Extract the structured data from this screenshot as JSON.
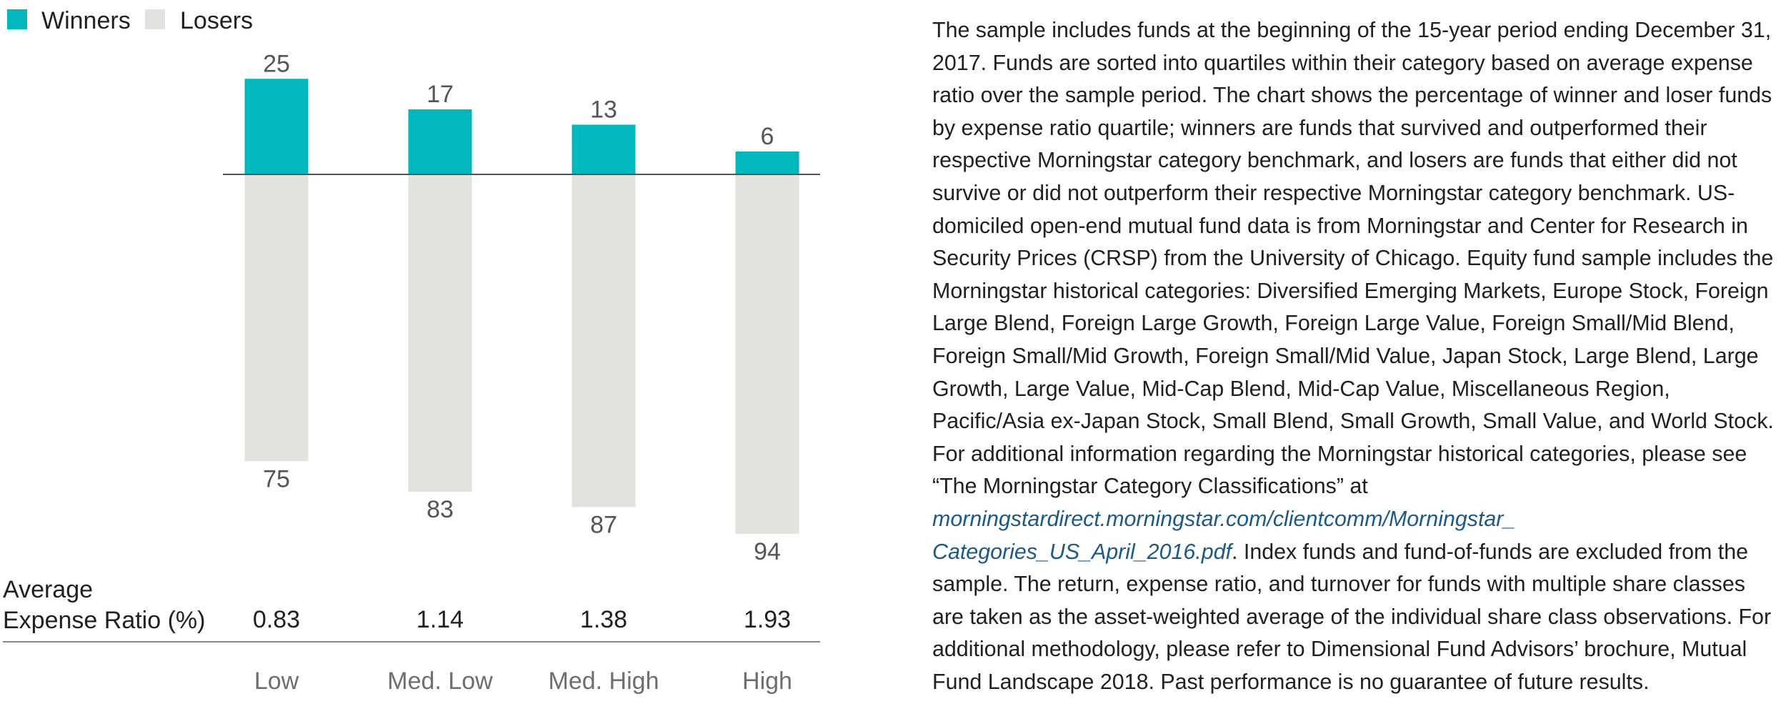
{
  "chart_data": {
    "type": "bar",
    "categories": [
      "Low",
      "Med. Low",
      "Med. High",
      "High"
    ],
    "series": [
      {
        "name": "Winners",
        "values": [
          25,
          17,
          13,
          6
        ],
        "color": "#00b8bc"
      },
      {
        "name": "Losers",
        "values": [
          75,
          83,
          87,
          94
        ],
        "color": "#e4e2de"
      }
    ],
    "expense_ratio_label_line1": "Average",
    "expense_ratio_label_line2": "Expense Ratio (%)",
    "expense_ratios": [
      "0.83",
      "1.14",
      "1.38",
      "1.93"
    ],
    "legend_placement": "top-left",
    "grid": false
  },
  "notes": {
    "text_before_link": "The sample includes funds at the beginning of the 15-year period ending December 31, 2017. Funds are sorted into quartiles within their category based on average expense ratio over the sample period. The chart shows the percentage of winner and loser funds by expense ratio quartile; winners are funds that survived and outperformed their respective Morningstar category benchmark, and losers are funds that either did not survive or did not outperform their respective Morningstar category benchmark. US-domiciled open-end mutual fund data is from Morningstar and Center for Research in Security Prices (CRSP) from the University of Chicago. Equity fund sample includes the Morningstar historical categories: Diversified Emerging Markets, Europe Stock, Foreign Large Blend, Foreign Large Growth, Foreign Large Value, Foreign Small/Mid Blend, Foreign Small/Mid Growth, Foreign Small/Mid Value, Japan Stock, Large Blend, Large Growth, Large Value, Mid-Cap Blend, Mid-Cap Value, Miscellaneous Region, Pacific/Asia ex-Japan Stock, Small Blend, Small Growth, Small Value, and World Stock. For additional information regarding the Morningstar historical categories, please see “The Morningstar Category Classifications” at ",
    "link_text": "morningstardirect.morningstar.com/clientcomm/Morningstar_ Categories_US_April_2016.pdf",
    "text_after_link": ". Index funds and fund-of-funds are excluded from the sample. The return, expense ratio, and turnover for funds with multiple share classes are taken as the asset-weighted average of the individual share class observations. For additional methodology, please refer to Dimensional Fund Advisors’ brochure, Mutual Fund Landscape 2018. Past performance is no guarantee of future results."
  }
}
